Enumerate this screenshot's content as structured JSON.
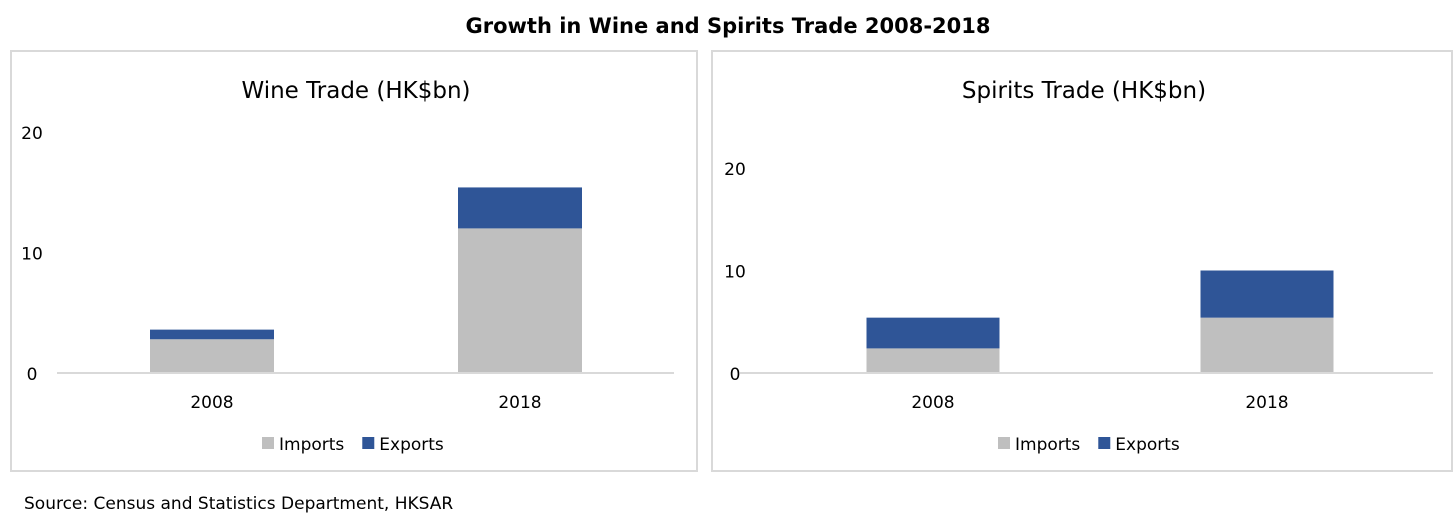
{
  "title": "Growth in Wine and Spirits Trade 2008-2018",
  "source": "Source: Census and Statistics Department, HKSAR",
  "chart_data": [
    {
      "type": "bar",
      "stacked": true,
      "title": "Wine Trade (HK$bn)",
      "categories": [
        "2008",
        "2018"
      ],
      "series": [
        {
          "name": "Imports",
          "values": [
            2.8,
            12.0
          ],
          "color": "#bfbfbf"
        },
        {
          "name": "Exports",
          "values": [
            0.8,
            3.4
          ],
          "color": "#2f5597"
        }
      ],
      "ylim": [
        0,
        20
      ],
      "yticks": [
        "0",
        "10",
        "20"
      ],
      "grid": false,
      "legend": "bottom"
    },
    {
      "type": "bar",
      "stacked": true,
      "title": "Spirits Trade (HK$bn)",
      "categories": [
        "2008",
        "2018"
      ],
      "series": [
        {
          "name": "Imports",
          "values": [
            2.4,
            5.4
          ],
          "color": "#bfbfbf"
        },
        {
          "name": "Exports",
          "values": [
            3.0,
            4.6
          ],
          "color": "#2f5597"
        }
      ],
      "ylim": [
        0,
        20
      ],
      "yticks": [
        "0",
        "10",
        "20"
      ],
      "grid": false,
      "legend": "bottom"
    }
  ]
}
